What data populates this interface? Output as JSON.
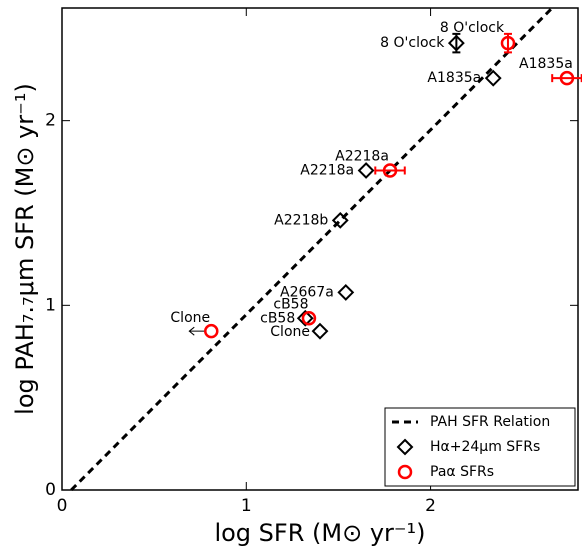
{
  "chart_data": {
    "type": "scatter",
    "xlabel": "log SFR (M⊙ yr⁻¹)",
    "ylabel": "log PAH₇.₇μm SFR (M⊙ yr⁻¹)",
    "xlim": [
      0,
      2.8
    ],
    "ylim": [
      0,
      2.61
    ],
    "xticks": [
      0,
      1,
      2
    ],
    "yticks": [
      0,
      1,
      2
    ],
    "legend": "lower right",
    "series": [
      {
        "name": "PAH SFR Relation",
        "type": "line",
        "color": "#000000",
        "x": [
          0.05,
          2.66
        ],
        "values": [
          0,
          2.61
        ]
      },
      {
        "name": "Hα+24μm SFRs",
        "type": "scatter",
        "marker": "diamond",
        "color": "#000000",
        "labels": [
          "8 O'clock",
          "A1835a",
          "A2218a",
          "A2218b",
          "A2667a",
          "cB58",
          "Clone"
        ],
        "x": [
          2.14,
          2.34,
          1.65,
          1.51,
          1.54,
          1.32,
          1.4
        ],
        "values": [
          2.42,
          2.23,
          1.73,
          1.46,
          1.07,
          0.93,
          0.86
        ],
        "yerr": [
          0.05,
          null,
          null,
          null,
          null,
          null,
          null
        ]
      },
      {
        "name": "Paα SFRs",
        "type": "scatter",
        "marker": "circle",
        "color": "#ff0000",
        "labels": [
          "8 O'clock",
          "A1835a",
          "A2218a",
          "cB58",
          "Clone"
        ],
        "x": [
          2.42,
          2.74,
          1.78,
          1.34,
          0.81
        ],
        "values": [
          2.42,
          2.23,
          1.73,
          0.93,
          0.86
        ],
        "xerr": [
          null,
          0.08,
          0.08,
          null,
          null
        ],
        "yerr": [
          0.05,
          null,
          null,
          null,
          null
        ],
        "upper_limit_x": [
          false,
          false,
          false,
          false,
          true
        ]
      }
    ]
  }
}
